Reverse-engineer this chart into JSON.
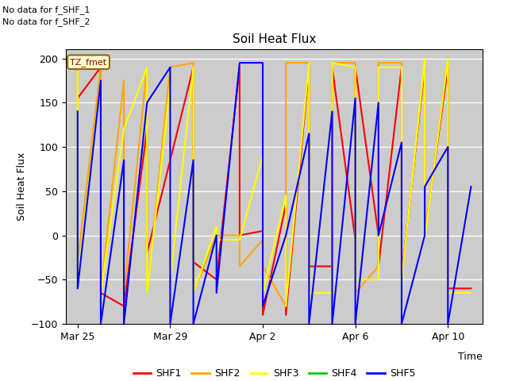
{
  "title": "Soil Heat Flux",
  "xlabel": "Time",
  "ylabel": "Soil Heat Flux",
  "ylim": [
    -100,
    210
  ],
  "yticks": [
    -100,
    -50,
    0,
    50,
    100,
    150,
    200
  ],
  "plot_bg_color": "#cccccc",
  "fig_bg_color": "#ffffff",
  "annotations_top_left": [
    "No data for f_SHF_1",
    "No data for f_SHF_2"
  ],
  "legend_label": "TZ_fmet",
  "series": {
    "SHF1": {
      "color": "#ff0000",
      "times": [
        0,
        1,
        1,
        2,
        3,
        3,
        4,
        5,
        5,
        6,
        7,
        7,
        8,
        8,
        9,
        9,
        10,
        10,
        11,
        11,
        12,
        12,
        13,
        13,
        14,
        14,
        15,
        15,
        16,
        16,
        17
      ],
      "values": [
        155,
        190,
        -65,
        -80,
        120,
        -20,
        85,
        190,
        -30,
        -50,
        190,
        0,
        5,
        -90,
        35,
        -90,
        190,
        -35,
        -35,
        190,
        -5,
        190,
        0,
        -35,
        190,
        -45,
        190,
        0,
        190,
        -60,
        -60
      ]
    },
    "SHF2": {
      "color": "#ffa500",
      "times": [
        0,
        0,
        1,
        1,
        2,
        2,
        3,
        3,
        4,
        5,
        5,
        6,
        7,
        7,
        8,
        8,
        9,
        9,
        10,
        10,
        11,
        11,
        12,
        12,
        13,
        13,
        14,
        14,
        15,
        15,
        16,
        16,
        17
      ],
      "values": [
        190,
        -30,
        190,
        -65,
        175,
        -65,
        190,
        -65,
        190,
        195,
        -65,
        0,
        0,
        -35,
        -5,
        -35,
        -80,
        195,
        195,
        -65,
        -65,
        195,
        195,
        -65,
        -35,
        195,
        195,
        -50,
        195,
        0,
        200,
        -65,
        -65
      ]
    },
    "SHF3": {
      "color": "#ffff00",
      "times": [
        0,
        0,
        1,
        1,
        2,
        3,
        3,
        4,
        4,
        5,
        5,
        6,
        6,
        7,
        8,
        8,
        9,
        9,
        10,
        10,
        11,
        11,
        12,
        12,
        13,
        13,
        14,
        14,
        15,
        15,
        16,
        16,
        17
      ],
      "values": [
        185,
        -55,
        175,
        -65,
        120,
        190,
        -65,
        170,
        -50,
        190,
        -65,
        10,
        -5,
        -5,
        90,
        -65,
        45,
        -80,
        195,
        -65,
        -65,
        195,
        190,
        -50,
        -50,
        190,
        190,
        -50,
        200,
        -5,
        200,
        -65,
        -65
      ]
    },
    "SHF4": {
      "color": "#00cc00",
      "times": [
        0
      ],
      "values": [
        185
      ]
    },
    "SHF5": {
      "color": "#0000ff",
      "times": [
        0,
        0,
        1,
        1,
        2,
        2,
        3,
        4,
        4,
        5,
        5,
        6,
        6,
        7,
        8,
        8,
        9,
        10,
        10,
        11,
        11,
        12,
        12,
        13,
        13,
        14,
        14,
        15,
        15,
        16,
        16,
        17
      ],
      "values": [
        140,
        -60,
        175,
        -100,
        85,
        -100,
        150,
        190,
        -100,
        85,
        -100,
        0,
        -65,
        195,
        195,
        -80,
        0,
        115,
        -100,
        140,
        -100,
        155,
        -100,
        150,
        0,
        105,
        -100,
        0,
        55,
        100,
        -100,
        55
      ]
    }
  },
  "xtick_labels": [
    "Mar 25",
    "Mar 29",
    "Apr 2",
    "Apr 6",
    "Apr 10"
  ],
  "xtick_times": [
    0,
    4,
    8,
    12,
    16
  ],
  "xlim": [
    -0.5,
    17.5
  ],
  "legend_entries": [
    "SHF1",
    "SHF2",
    "SHF3",
    "SHF4",
    "SHF5"
  ],
  "legend_colors": [
    "#ff0000",
    "#ffa500",
    "#ffff00",
    "#00cc00",
    "#0000ff"
  ]
}
